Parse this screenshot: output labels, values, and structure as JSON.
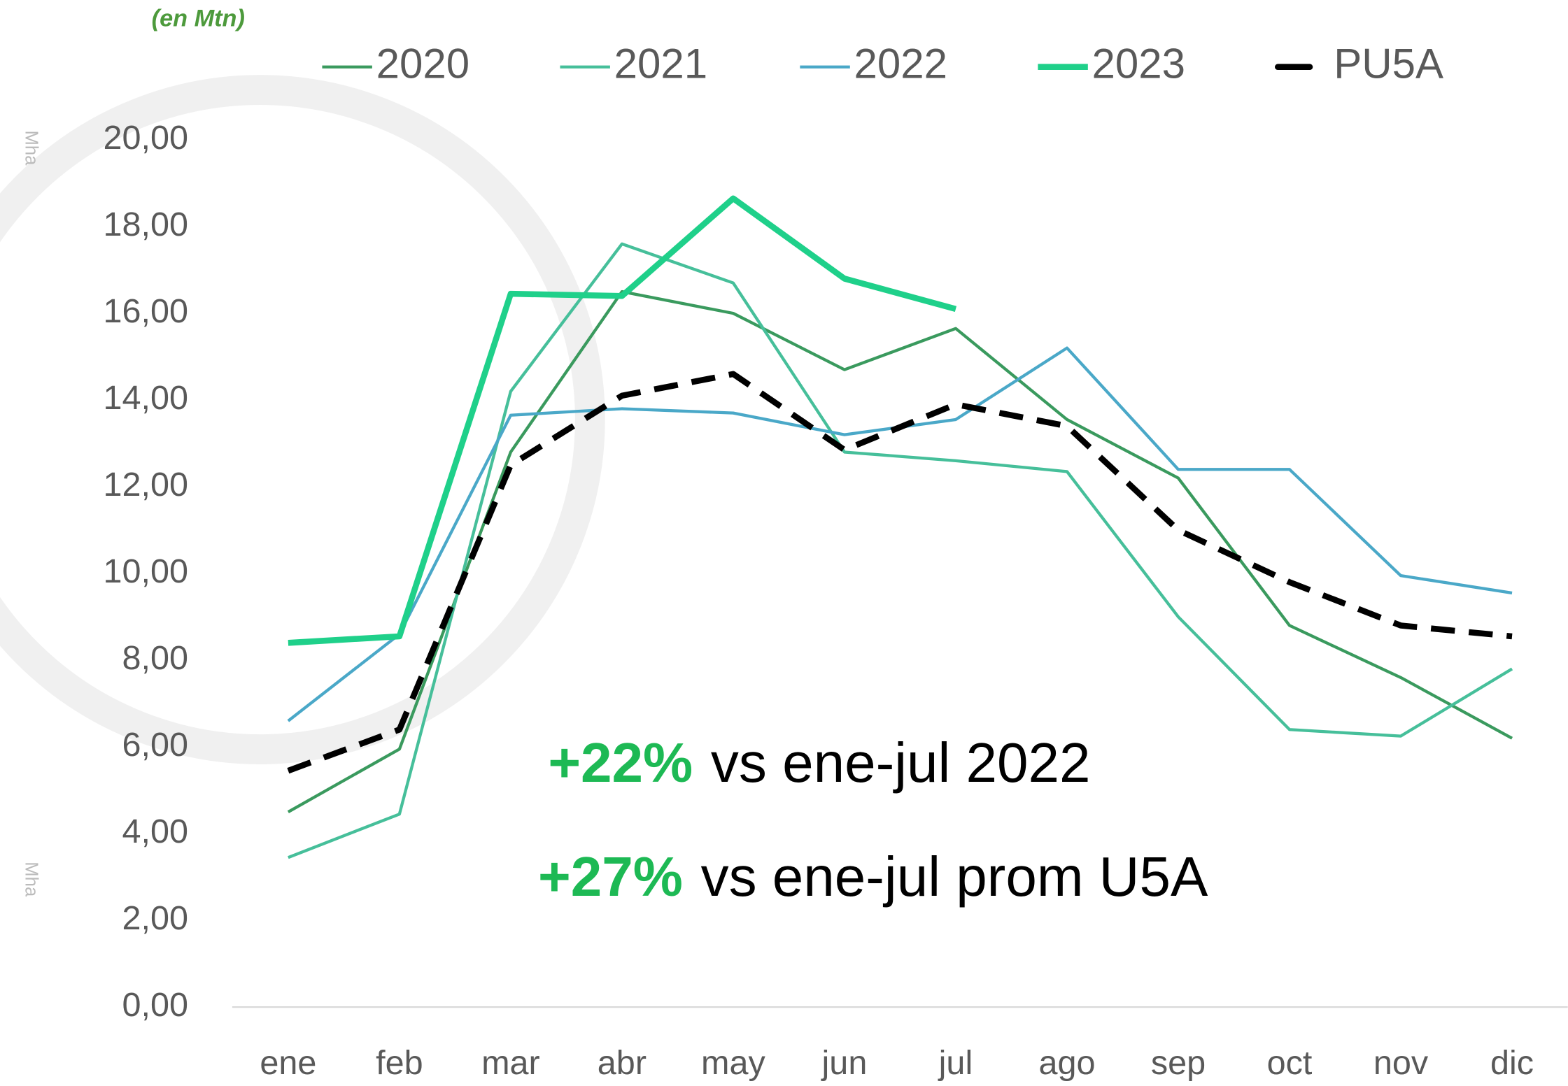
{
  "chart_data": {
    "type": "line",
    "subtitle": "(en Mtn)",
    "side_labels": [
      "Mha",
      "Mha"
    ],
    "categories": [
      "ene",
      "feb",
      "mar",
      "abr",
      "may",
      "jun",
      "jul",
      "ago",
      "sep",
      "oct",
      "nov",
      "dic"
    ],
    "series": [
      {
        "name": "2020",
        "color": "#3a9a5e",
        "width": 3,
        "dashed": false,
        "values": [
          4.5,
          5.95,
          12.8,
          16.5,
          16.0,
          14.7,
          15.65,
          13.55,
          12.2,
          8.8,
          7.6,
          6.2
        ]
      },
      {
        "name": "2021",
        "color": "#46bf9a",
        "width": 3,
        "dashed": false,
        "values": [
          3.45,
          4.45,
          14.2,
          17.6,
          16.7,
          12.8,
          12.6,
          12.35,
          9.0,
          6.4,
          6.25,
          7.8
        ]
      },
      {
        "name": "2022",
        "color": "#4aa8c8",
        "width": 3,
        "dashed": false,
        "values": [
          6.6,
          8.6,
          13.65,
          13.8,
          13.7,
          13.2,
          13.55,
          15.2,
          12.4,
          12.4,
          9.95,
          9.55
        ]
      },
      {
        "name": "2023",
        "color": "#1fd08a",
        "width": 6,
        "dashed": false,
        "values": [
          8.4,
          8.55,
          16.45,
          16.4,
          18.65,
          16.8,
          16.1,
          null,
          null,
          null,
          null,
          null
        ]
      },
      {
        "name": "PU5A",
        "color": "#000000",
        "width": 6,
        "dashed": true,
        "values": [
          5.45,
          6.4,
          12.5,
          14.1,
          14.6,
          12.85,
          13.9,
          13.4,
          11.0,
          9.8,
          8.8,
          8.55
        ]
      }
    ],
    "ylim": [
      0,
      20
    ],
    "yticks": [
      {
        "value": 0,
        "label": "0,00"
      },
      {
        "value": 2,
        "label": "2,00"
      },
      {
        "value": 4,
        "label": "4,00"
      },
      {
        "value": 6,
        "label": "6,00"
      },
      {
        "value": 8,
        "label": "8,00"
      },
      {
        "value": 10,
        "label": "10,00"
      },
      {
        "value": 12,
        "label": "12,00"
      },
      {
        "value": 14,
        "label": "14,00"
      },
      {
        "value": 16,
        "label": "16,00"
      },
      {
        "value": 18,
        "label": "18,00"
      },
      {
        "value": 20,
        "label": "20,00"
      }
    ],
    "annotations": [
      {
        "highlight": "+22%",
        "text": "vs ene-jul 2022"
      },
      {
        "highlight": "+27%",
        "text": "vs ene-jul prom U5A"
      }
    ]
  }
}
